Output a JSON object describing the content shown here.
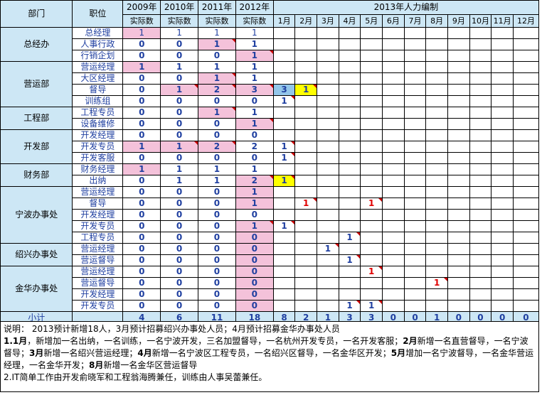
{
  "headers": {
    "dept": "部门",
    "pos": "职位",
    "y2009": [
      "2009年",
      "实际数"
    ],
    "y2010": [
      "2010年",
      "实际数"
    ],
    "y2011": [
      "2011年",
      "实际数"
    ],
    "y2012": [
      "2012年",
      "实际数"
    ],
    "plan_title": "2013年人力编制",
    "months": [
      "1月",
      "2月",
      "3月",
      "4月",
      "5月",
      "6月",
      "7月",
      "8月",
      "9月",
      "10月",
      "11月",
      "12月"
    ]
  },
  "departments": [
    {
      "name": "总经办",
      "rows": 3
    },
    {
      "name": "营运部",
      "rows": 4
    },
    {
      "name": "工程部",
      "rows": 2
    },
    {
      "name": "开发部",
      "rows": 3
    },
    {
      "name": "财务部",
      "rows": 2
    },
    {
      "name": "宁波办事处",
      "rows": 5
    },
    {
      "name": "绍兴办事处",
      "rows": 2
    },
    {
      "name": "金华办事处",
      "rows": 4
    }
  ],
  "rows": [
    {
      "pos": "总经理",
      "v": [
        "1",
        "1",
        "1",
        "1"
      ],
      "thin": true,
      "m": {}
    },
    {
      "pos": "人事行政",
      "v": [
        "0",
        "0",
        "1",
        "1"
      ],
      "m": {}
    },
    {
      "pos": "行销企划",
      "v": [
        "0",
        "0",
        "0",
        "1"
      ],
      "m": {}
    },
    {
      "pos": "营运经理",
      "v": [
        "1",
        "1",
        "1",
        "1"
      ],
      "m": {}
    },
    {
      "pos": "大区经理",
      "v": [
        "0",
        "0",
        "1",
        "1"
      ],
      "m": {}
    },
    {
      "pos": "督导",
      "v": [
        "0",
        "1",
        "2",
        "3"
      ],
      "m": {
        "0": "3",
        "1": "1"
      }
    },
    {
      "pos": "训练组",
      "v": [
        "0",
        "0",
        "0",
        "0"
      ],
      "m": {
        "0": "1"
      }
    },
    {
      "pos": "工程专员",
      "v": [
        "0",
        "0",
        "1",
        "1"
      ],
      "m": {}
    },
    {
      "pos": "设备维修",
      "v": [
        "0",
        "0",
        "0",
        "1"
      ],
      "m": {}
    },
    {
      "pos": "开发经理",
      "v": [
        "0",
        "0",
        "0",
        "0"
      ],
      "m": {}
    },
    {
      "pos": "开发专员",
      "v": [
        "1",
        "1",
        "2",
        "2"
      ],
      "m": {
        "0": "1"
      }
    },
    {
      "pos": "开发客服",
      "v": [
        "0",
        "0",
        "0",
        "0"
      ],
      "m": {
        "0": "1"
      }
    },
    {
      "pos": "财务经理",
      "v": [
        "1",
        "1",
        "1",
        "1"
      ],
      "m": {}
    },
    {
      "pos": "出纳",
      "v": [
        "0",
        "1",
        "1",
        "2"
      ],
      "m": {
        "0": "1"
      }
    },
    {
      "pos": "营运经理",
      "v": [
        "0",
        "0",
        "0",
        "1"
      ],
      "m": {}
    },
    {
      "pos": "督导",
      "v": [
        "0",
        "0",
        "0",
        "1"
      ],
      "m": {
        "1": "1",
        "4": "1"
      }
    },
    {
      "pos": "开发经理",
      "v": [
        "0",
        "0",
        "0",
        "0"
      ],
      "m": {}
    },
    {
      "pos": "开发专员",
      "v": [
        "0",
        "0",
        "0",
        "1"
      ],
      "m": {
        "0": "1"
      }
    },
    {
      "pos": "工程专员",
      "v": [
        "0",
        "0",
        "0",
        "0"
      ],
      "m": {
        "3": "1"
      }
    },
    {
      "pos": "营运经理",
      "v": [
        "0",
        "0",
        "0",
        "0"
      ],
      "m": {
        "2": "1"
      }
    },
    {
      "pos": "营运督导",
      "v": [
        "0",
        "0",
        "0",
        "0"
      ],
      "m": {
        "3": "1"
      }
    },
    {
      "pos": "营运经理",
      "v": [
        "0",
        "0",
        "0",
        "0"
      ],
      "m": {
        "4": "1"
      }
    },
    {
      "pos": "营运督导",
      "v": [
        "0",
        "0",
        "0",
        "0"
      ],
      "m": {
        "7": "1"
      }
    },
    {
      "pos": "开发经理",
      "v": [
        "0",
        "0",
        "0",
        "0"
      ],
      "m": {}
    },
    {
      "pos": "开发专员",
      "v": [
        "0",
        "0",
        "0",
        "0"
      ],
      "m": {
        "3": "1",
        "4": "1"
      }
    }
  ],
  "total": {
    "label": "小计",
    "years": [
      "4",
      "6",
      "11",
      "18"
    ],
    "months": [
      "8",
      "2",
      "1",
      "3",
      "3",
      "0",
      "0",
      "1",
      "0",
      "0",
      "0",
      "0"
    ]
  },
  "notes": {
    "line1": "说明： 2013预计新增18人，3月预计招募绍兴办事处人员；4月预计招募金华办事处人员",
    "line2": [
      {
        "b": "1.1月",
        "t": "，新增加一名出纳，一名训练，一名宁波开发，三名加盟督导，一名杭州开发专员，一名开发客服；"
      },
      {
        "b": "2月",
        "t": "新增一名直营督导，一名宁波督导；"
      },
      {
        "b": "3月",
        "t": "新增一名绍兴营运经理；"
      },
      {
        "b": "4月",
        "t": "新增一名宁波区工程专员，一名绍兴区督导，一名金华区开发；"
      },
      {
        "b": "5月",
        "t": "增加一名宁波督导，一名金华营运经理，一名金华开发；"
      },
      {
        "b": "8月",
        "t": "新增一名金华区营运督导"
      }
    ],
    "line3": "2.IT简单工作由开发俞晓军和工程翁海腾兼任，训练由人事吴蕾兼任。"
  },
  "colors": {
    "header_bg": "#cde7f5",
    "pink": "#f4c2da",
    "blue": "#93c6ea",
    "yellow": "#ffff00",
    "number_text": "#1f3fa0",
    "red_text": "#e00000"
  }
}
